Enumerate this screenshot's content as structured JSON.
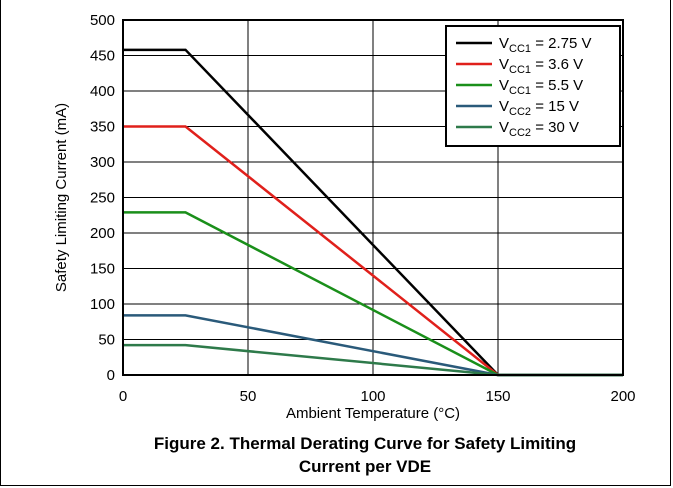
{
  "chart_data": {
    "type": "line",
    "title": "",
    "xlabel": "Ambient Temperature (°C)",
    "ylabel": "Safety Limiting Current (mA)",
    "xlim": [
      0,
      200
    ],
    "ylim": [
      0,
      500
    ],
    "xticks": [
      0,
      50,
      100,
      150,
      200
    ],
    "yticks": [
      0,
      50,
      100,
      150,
      200,
      250,
      300,
      350,
      400,
      450,
      500
    ],
    "grid": true,
    "legend_position": "top-right",
    "series": [
      {
        "name": "VCC1 = 2.75 V",
        "label_main": "V",
        "label_sub": "CC1",
        "label_rest": " = 2.75 V",
        "color": "#000000",
        "x": [
          0,
          25,
          150,
          200
        ],
        "y": [
          458,
          458,
          0,
          0
        ]
      },
      {
        "name": "VCC1 = 3.6 V",
        "label_main": "V",
        "label_sub": "CC1",
        "label_rest": " = 3.6 V",
        "color": "#e0201b",
        "x": [
          0,
          25,
          150,
          200
        ],
        "y": [
          350,
          350,
          0,
          0
        ]
      },
      {
        "name": "VCC1 = 5.5 V",
        "label_main": "V",
        "label_sub": "CC1",
        "label_rest": " = 5.5 V",
        "color": "#1a8f1a",
        "x": [
          0,
          25,
          150,
          200
        ],
        "y": [
          229,
          229,
          0,
          0
        ]
      },
      {
        "name": "VCC2 = 15 V",
        "label_main": "V",
        "label_sub": "CC2",
        "label_rest": " = 15 V",
        "color": "#2a5a7a",
        "x": [
          0,
          25,
          150,
          200
        ],
        "y": [
          84,
          84,
          0,
          0
        ]
      },
      {
        "name": "VCC2 = 30 V",
        "label_main": "V",
        "label_sub": "CC2",
        "label_rest": " = 30 V",
        "color": "#2e7a4a",
        "x": [
          0,
          25,
          150,
          200
        ],
        "y": [
          42,
          42,
          0,
          0
        ]
      }
    ]
  },
  "caption": {
    "line1": "Figure 2. Thermal Derating Curve for Safety Limiting",
    "line2": "Current per VDE"
  }
}
